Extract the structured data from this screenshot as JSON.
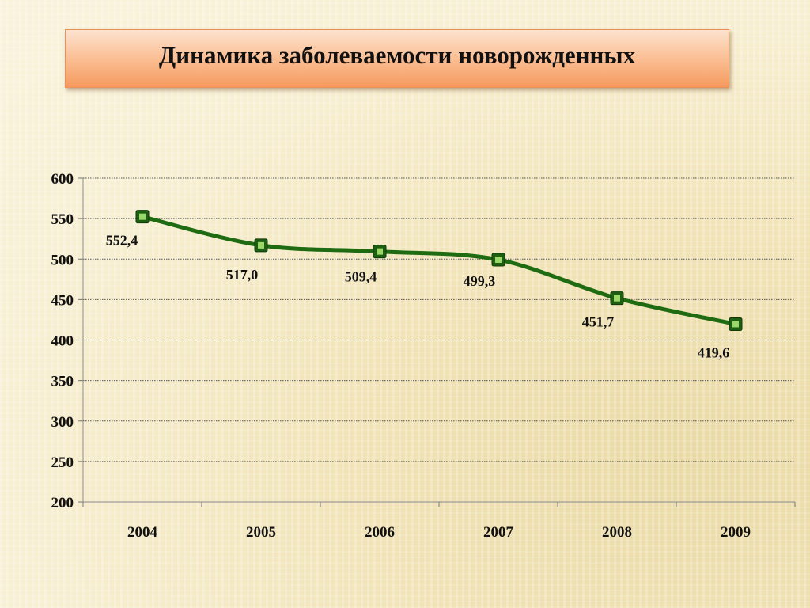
{
  "slide": {
    "title": "Динамика заболеваемости новорожденных"
  },
  "chart_data": {
    "type": "line",
    "title": "",
    "xlabel": "",
    "ylabel": "",
    "categories": [
      "2004",
      "2005",
      "2006",
      "2007",
      "2008",
      "2009"
    ],
    "series": [
      {
        "values": [
          552.4,
          517.0,
          509.4,
          499.3,
          451.7,
          419.6
        ],
        "labels": [
          "552,4",
          "517,0",
          "509,4",
          "499,3",
          "451,7",
          "419,6"
        ],
        "color": "#1f6b12",
        "marker_color": "#2e8b1a",
        "marker_inner": "#9bd86a"
      }
    ],
    "ylim": [
      200,
      600
    ],
    "yticks": [
      200,
      250,
      300,
      350,
      400,
      450,
      500,
      550,
      600
    ],
    "grid": true,
    "smooth": true,
    "legend": "none"
  }
}
